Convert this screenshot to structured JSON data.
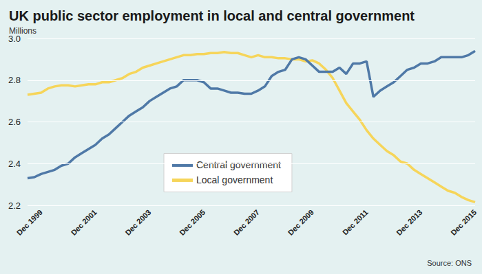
{
  "chart_data": {
    "type": "line",
    "title": "UK public sector employment in local and central government",
    "subtitle": "Millions",
    "source": "Source: ONS",
    "categories": [
      null,
      null,
      "Dec 1999",
      null,
      null,
      null,
      null,
      null,
      null,
      null,
      "Dec 2001",
      null,
      null,
      null,
      null,
      null,
      null,
      null,
      "Dec 2003",
      null,
      null,
      null,
      null,
      null,
      null,
      null,
      "Dec 2005",
      null,
      null,
      null,
      null,
      null,
      null,
      null,
      "Dec 2007",
      null,
      null,
      null,
      null,
      null,
      null,
      null,
      "Dec 2009",
      null,
      null,
      null,
      null,
      null,
      null,
      null,
      "Dec 2011",
      null,
      null,
      null,
      null,
      null,
      null,
      null,
      "Dec 2013",
      null,
      null,
      null,
      null,
      null,
      null,
      null,
      "Dec 2015"
    ],
    "series": [
      {
        "name": "Central government",
        "color": "#4f79a7",
        "values": [
          2.33,
          2.335,
          2.35,
          2.36,
          2.37,
          2.39,
          2.4,
          2.43,
          2.45,
          2.47,
          2.49,
          2.52,
          2.54,
          2.57,
          2.6,
          2.63,
          2.65,
          2.67,
          2.7,
          2.72,
          2.74,
          2.76,
          2.77,
          2.8,
          2.8,
          2.8,
          2.79,
          2.76,
          2.76,
          2.75,
          2.74,
          2.74,
          2.735,
          2.735,
          2.75,
          2.77,
          2.82,
          2.84,
          2.85,
          2.9,
          2.91,
          2.9,
          2.87,
          2.84,
          2.84,
          2.84,
          2.86,
          2.83,
          2.88,
          2.88,
          2.89,
          2.72,
          2.75,
          2.77,
          2.79,
          2.82,
          2.85,
          2.86,
          2.88,
          2.88,
          2.89,
          2.91,
          2.91,
          2.91,
          2.91,
          2.92,
          2.94
        ]
      },
      {
        "name": "Local government",
        "color": "#f6d55a",
        "values": [
          2.73,
          2.735,
          2.74,
          2.76,
          2.77,
          2.775,
          2.775,
          2.77,
          2.775,
          2.78,
          2.78,
          2.79,
          2.79,
          2.8,
          2.81,
          2.83,
          2.84,
          2.86,
          2.87,
          2.88,
          2.89,
          2.9,
          2.91,
          2.92,
          2.92,
          2.925,
          2.925,
          2.93,
          2.93,
          2.935,
          2.93,
          2.93,
          2.92,
          2.91,
          2.92,
          2.91,
          2.91,
          2.905,
          2.905,
          2.9,
          2.9,
          2.89,
          2.895,
          2.88,
          2.85,
          2.81,
          2.75,
          2.69,
          2.65,
          2.61,
          2.56,
          2.52,
          2.49,
          2.46,
          2.44,
          2.41,
          2.4,
          2.37,
          2.35,
          2.33,
          2.31,
          2.29,
          2.27,
          2.26,
          2.24,
          2.225,
          2.215
        ]
      }
    ],
    "ylim": [
      2.2,
      3
    ],
    "yticks": [
      2.2,
      2.4,
      2.6,
      2.8,
      {
        "value": 3,
        "label": "3.0"
      }
    ],
    "grid": true,
    "legend": "center"
  }
}
